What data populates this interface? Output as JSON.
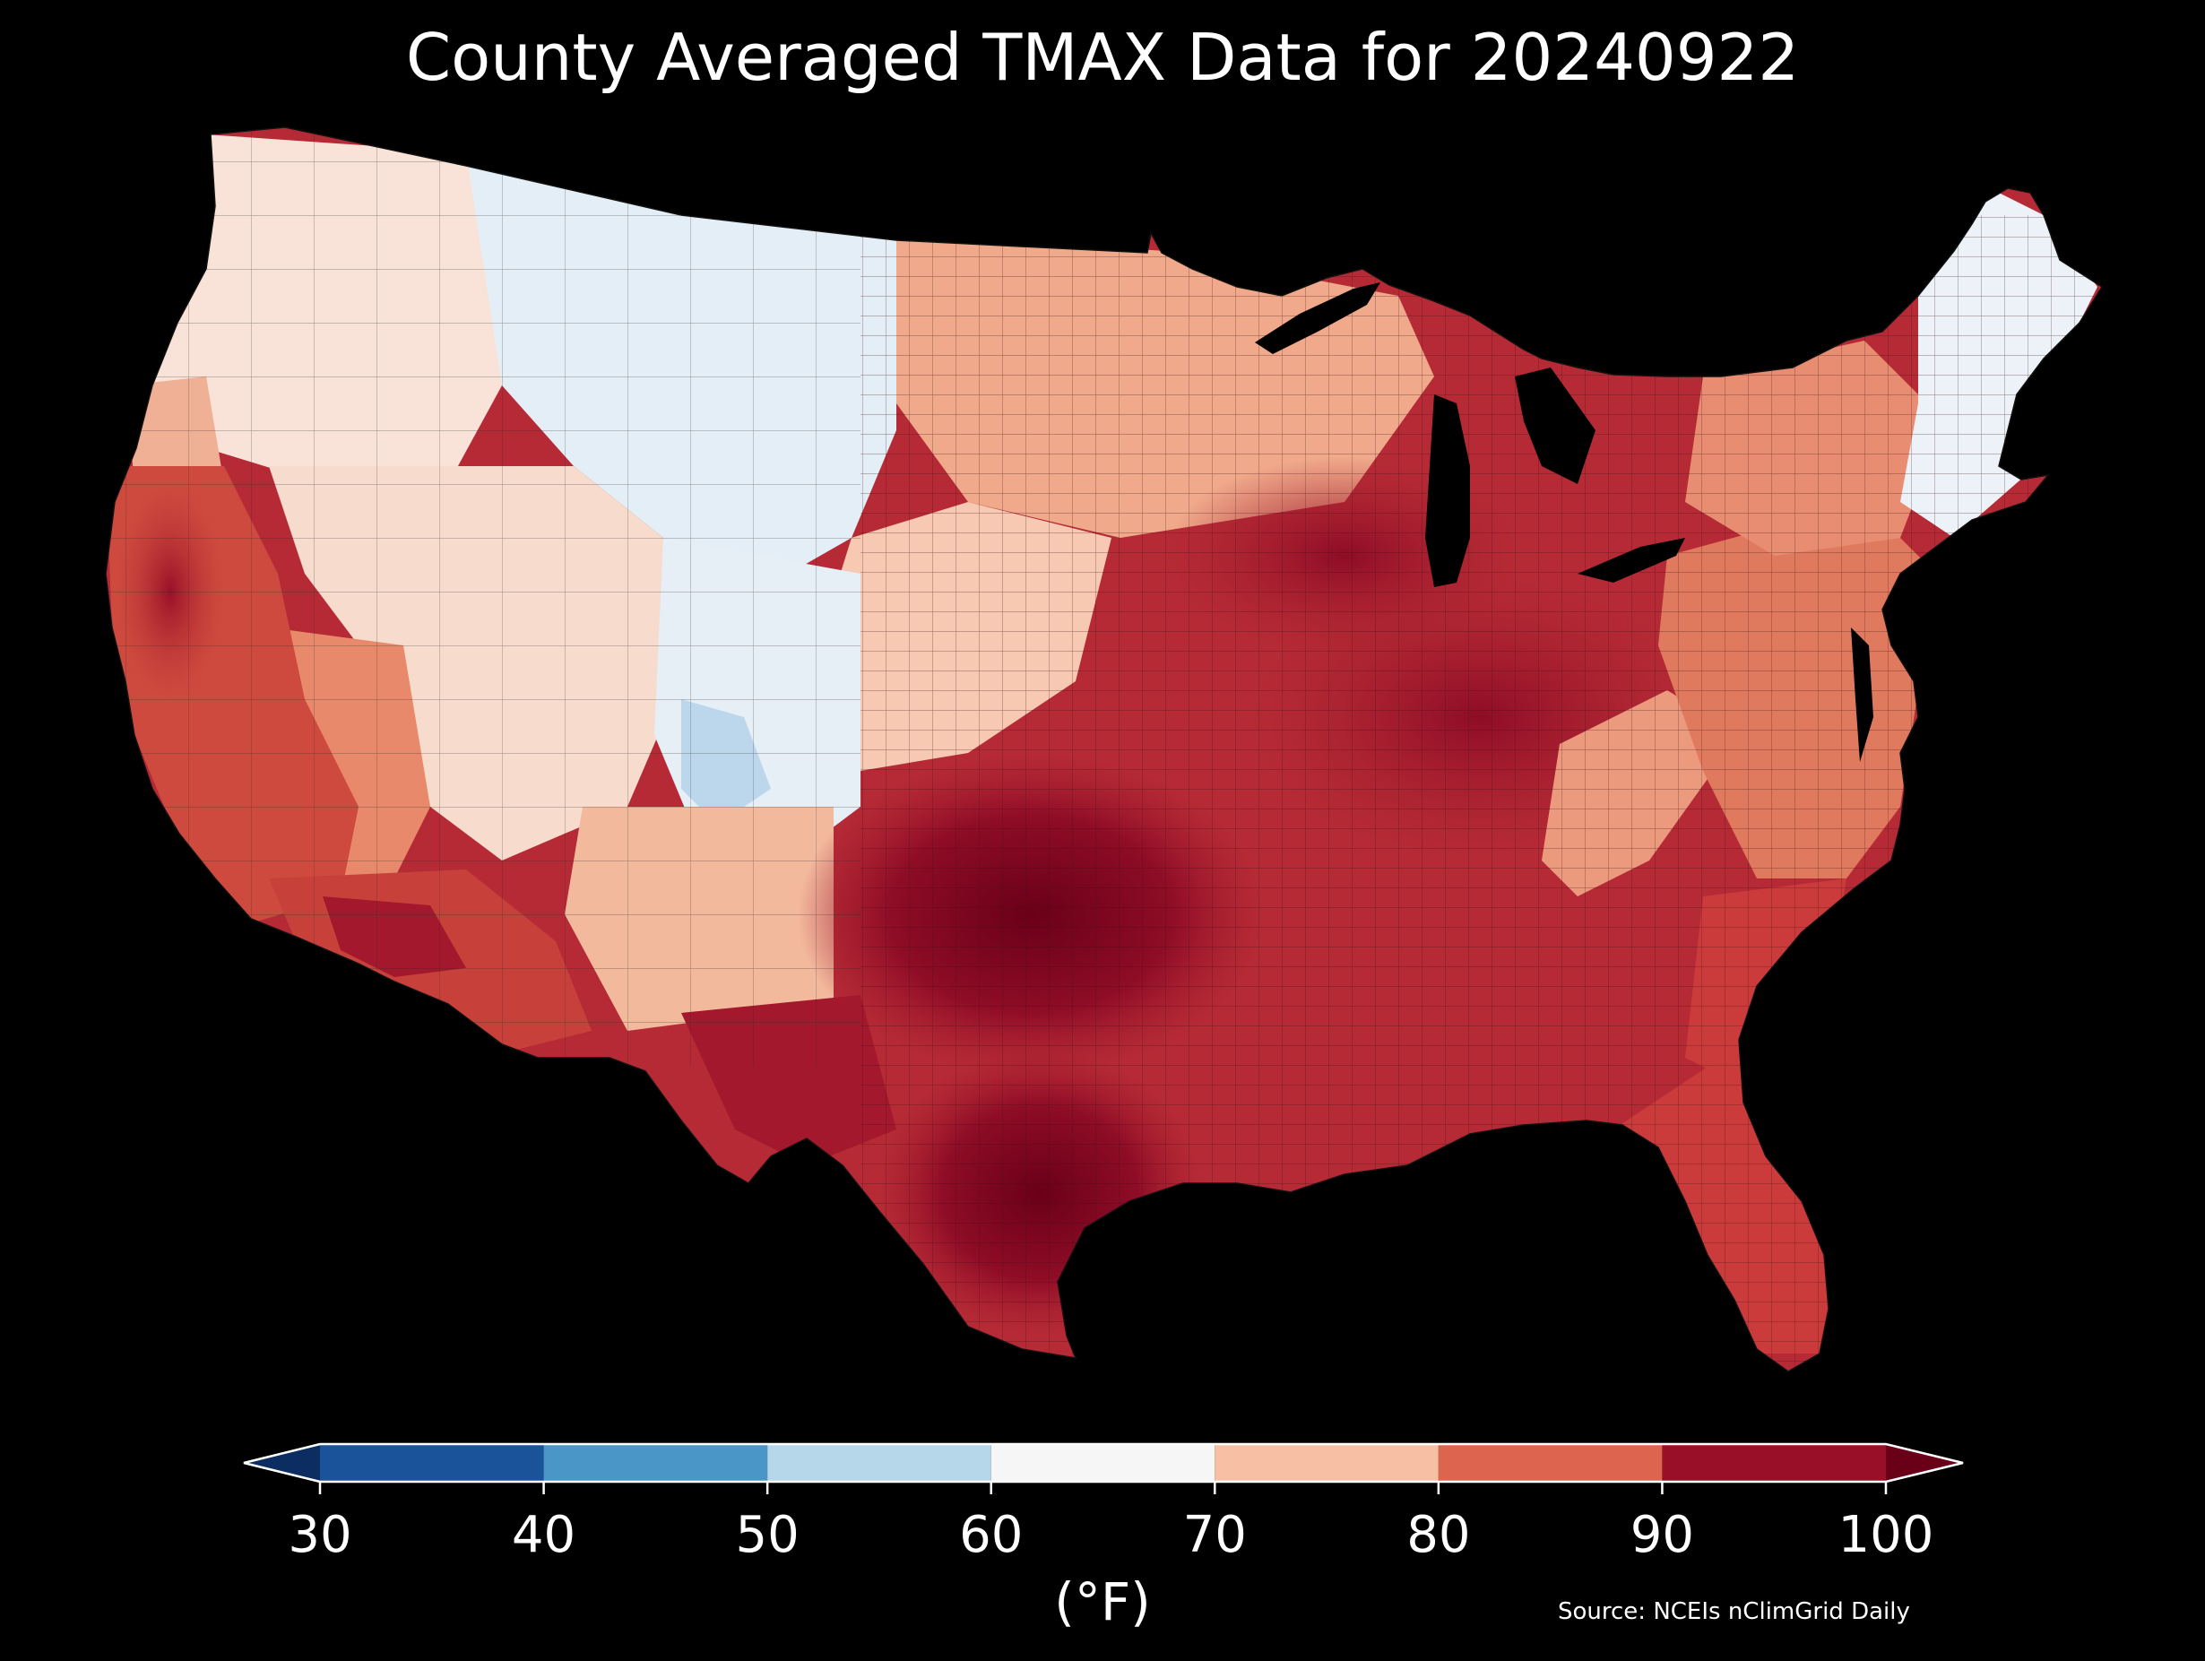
{
  "title": "County Averaged TMAX Data for 20240922",
  "colorbar": {
    "unit_label": "(°F)",
    "ticks": [
      "30",
      "40",
      "50",
      "60",
      "70",
      "80",
      "90",
      "100"
    ],
    "bins": [
      {
        "from": 30,
        "to": 40,
        "color": "#1b539a"
      },
      {
        "from": 40,
        "to": 50,
        "color": "#4a96c6"
      },
      {
        "from": 50,
        "to": 60,
        "color": "#b6d6ea"
      },
      {
        "from": 60,
        "to": 70,
        "color": "#f6f6f6"
      },
      {
        "from": 70,
        "to": 80,
        "color": "#f7c0a4"
      },
      {
        "from": 80,
        "to": 90,
        "color": "#dd6550"
      },
      {
        "from": 90,
        "to": 100,
        "color": "#9a0f28"
      }
    ],
    "under_color": "#0c2d62",
    "over_color": "#6a0018"
  },
  "source": "Source: NCEIs nClimGrid Daily",
  "map": {
    "region": "Contiguous United States, county level",
    "land_fill_regions": [
      {
        "area": "Pacific Northwest",
        "color": "#f9e3d8"
      },
      {
        "area": "Northern Rockies / Northern Plains",
        "color": "#e4eef6"
      },
      {
        "area": "California coast and Central Valley",
        "color": "#cf4a3e"
      },
      {
        "area": "Southwest desert",
        "color": "#c8403a"
      },
      {
        "area": "Great Basin / Colorado Plateau",
        "color": "#f7dccd"
      },
      {
        "area": "Upper Midwest",
        "color": "#f0a98a"
      },
      {
        "area": "Southern Plains (Oklahoma / North Texas)",
        "color": "#7a0a22"
      },
      {
        "area": "South Texas",
        "color": "#9b0f2a"
      },
      {
        "area": "Midwest / Ohio Valley",
        "color": "#b01f33"
      },
      {
        "area": "Southeast",
        "color": "#b52a35"
      },
      {
        "area": "Appalachians",
        "color": "#ec9a7e"
      },
      {
        "area": "Mid-Atlantic",
        "color": "#e07a5e"
      },
      {
        "area": "Florida",
        "color": "#cc3b3b"
      },
      {
        "area": "New England",
        "color": "#ecf2f7"
      }
    ]
  }
}
